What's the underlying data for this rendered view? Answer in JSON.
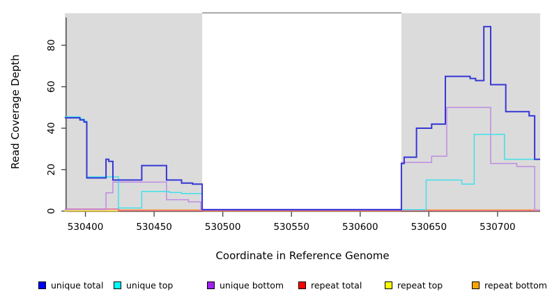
{
  "chart_data": {
    "type": "line",
    "subtype": "step-coverage",
    "title": "",
    "xlabel": "Coordinate in Reference Genome",
    "ylabel": "Read Coverage Depth",
    "xlim": [
      530385,
      530731
    ],
    "ylim": [
      0,
      95
    ],
    "x_ticks": [
      530400,
      530450,
      530500,
      530550,
      530600,
      530650,
      530700
    ],
    "y_ticks": [
      0,
      20,
      40,
      60,
      80
    ],
    "grid": false,
    "legend_position": "bottom",
    "background_color": "#ffffff",
    "shade_color": "#dbdbdb",
    "axis_color": "#404040",
    "gap_border_color": "#8a8a8a",
    "shaded_regions": [
      {
        "x1": 530385,
        "x2": 530485
      },
      {
        "x1": 530630,
        "x2": 530731
      }
    ],
    "series": [
      {
        "name": "unique total",
        "legend_color": "#0000ff",
        "line_color": "#3636d6",
        "line_width": 2,
        "points": [
          [
            530385,
            45
          ],
          [
            530396,
            44
          ],
          [
            530399,
            43
          ],
          [
            530401,
            16
          ],
          [
            530415,
            25
          ],
          [
            530417,
            24
          ],
          [
            530420,
            15
          ],
          [
            530441,
            22
          ],
          [
            530459,
            15
          ],
          [
            530470,
            13.5
          ],
          [
            530478,
            13
          ],
          [
            530485,
            0.7
          ],
          [
            530630,
            23
          ],
          [
            530632,
            26
          ],
          [
            530641,
            40
          ],
          [
            530652,
            42
          ],
          [
            530662,
            65
          ],
          [
            530680,
            64
          ],
          [
            530684,
            63
          ],
          [
            530690,
            89
          ],
          [
            530695,
            61
          ],
          [
            530706,
            48
          ],
          [
            530723,
            46
          ],
          [
            530727,
            25
          ],
          [
            530731,
            25
          ]
        ]
      },
      {
        "name": "unique top",
        "legend_color": "#00ffff",
        "line_color": "#40e0ec",
        "line_width": 1.5,
        "points": [
          [
            530385,
            45.5
          ],
          [
            530396,
            44.5
          ],
          [
            530399,
            43.5
          ],
          [
            530401,
            16.5
          ],
          [
            530424,
            1.5
          ],
          [
            530441,
            9.5
          ],
          [
            530461,
            9
          ],
          [
            530470,
            8.5
          ],
          [
            530485,
            0.7
          ],
          [
            530648,
            15
          ],
          [
            530674,
            13
          ],
          [
            530683,
            37
          ],
          [
            530705,
            25
          ],
          [
            530731,
            25
          ]
        ]
      },
      {
        "name": "unique bottom",
        "legend_color": "#a020f0",
        "line_color": "#bd8ce2",
        "line_width": 1.5,
        "points": [
          [
            530385,
            0.8
          ],
          [
            530415,
            8.8
          ],
          [
            530420,
            14
          ],
          [
            530459,
            5.5
          ],
          [
            530475,
            4.5
          ],
          [
            530484,
            0.8
          ],
          [
            530630,
            23.5
          ],
          [
            530652,
            26.5
          ],
          [
            530663,
            50
          ],
          [
            530695,
            23
          ],
          [
            530714,
            21.5
          ],
          [
            530727,
            0.5
          ],
          [
            530731,
            0.5
          ]
        ]
      },
      {
        "name": "repeat total",
        "legend_color": "#ff0000",
        "line_color": "#e76a9b",
        "line_width": 1.5,
        "points": [
          [
            530385,
            1
          ],
          [
            530424,
            0.2
          ],
          [
            530731,
            0.2
          ]
        ]
      },
      {
        "name": "repeat top",
        "legend_color": "#ffff00",
        "line_color": "#f2f23c",
        "line_width": 1.2,
        "points": [
          [
            530385,
            0.15
          ],
          [
            530731,
            0.15
          ]
        ]
      },
      {
        "name": "repeat bottom",
        "legend_color": "#ffa500",
        "line_color": "#ff9c20",
        "line_width": 1.8,
        "points": [
          [
            530385,
            0.1
          ],
          [
            530424,
            0.5
          ],
          [
            530486,
            0.1
          ],
          [
            530629,
            0.5
          ],
          [
            530731,
            0.5
          ]
        ]
      }
    ]
  }
}
